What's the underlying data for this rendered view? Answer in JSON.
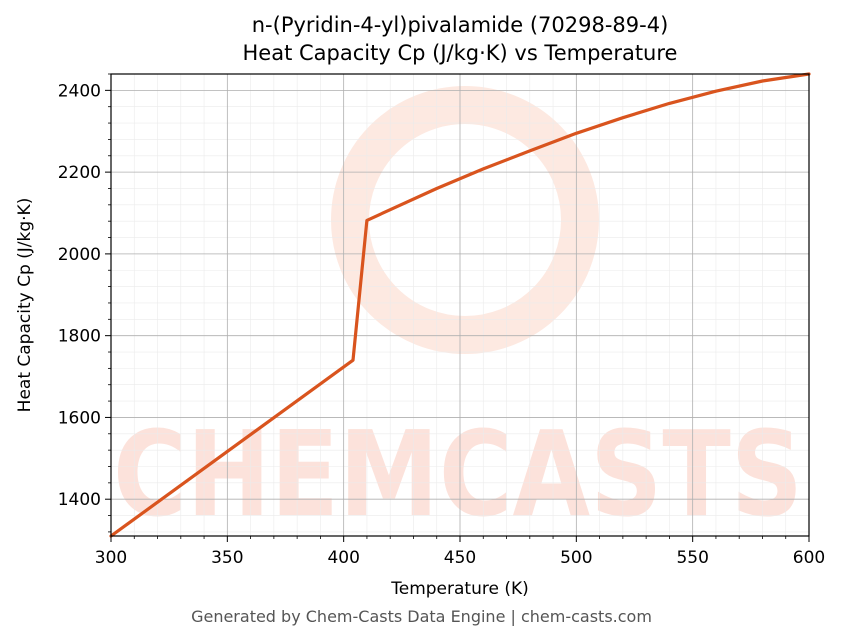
{
  "chart_data": {
    "type": "line",
    "title": "n-(Pyridin-4-yl)pivalamide (70298-89-4)",
    "subtitle": "Heat Capacity Cp (J/kg·K) vs Temperature",
    "xlabel": "Temperature (K)",
    "ylabel": "Heat Capacity Cp (J/kg·K)",
    "xlim": [
      300,
      600
    ],
    "ylim": [
      1310,
      2440
    ],
    "xticks": [
      300,
      350,
      400,
      450,
      500,
      550,
      600
    ],
    "yticks": [
      1400,
      1600,
      1800,
      2000,
      2200,
      2400
    ],
    "grid": true,
    "line_color": "#d9541e",
    "series": [
      {
        "x": [
          300,
          404,
          410,
          420,
          440,
          460,
          480,
          500,
          520,
          540,
          560,
          580,
          600
        ],
        "y": [
          1310,
          1740,
          2082,
          2108,
          2160,
          2208,
          2252,
          2295,
          2333,
          2368,
          2398,
          2423,
          2440
        ]
      }
    ]
  },
  "watermark": {
    "text": "CHEMCASTS",
    "color": "#fcd9cf"
  },
  "footer": "Generated by Chem-Casts Data Engine | chem-casts.com"
}
